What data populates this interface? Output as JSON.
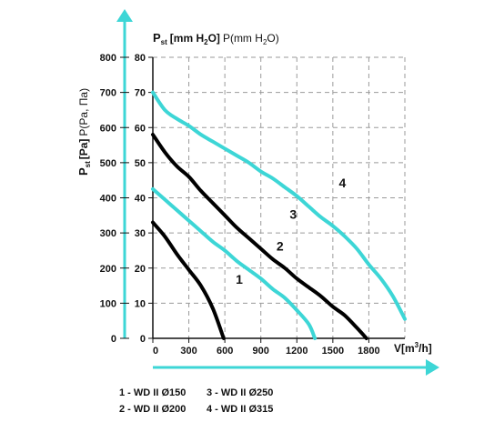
{
  "chart_data": {
    "type": "line",
    "title_main": "P",
    "title_sub": "st",
    "title_units": "[mm H",
    "title_units_sub": "2",
    "title_units_end": "O]",
    "title_alt": "P(mm H",
    "title_alt_sub": "2",
    "title_alt_end": "O)",
    "ylabel_main": "P",
    "ylabel_sub": "st",
    "ylabel_rest": "[Pa]",
    "ylabel_alt": "P(Pa, Па)",
    "xlabel_main": "V[m",
    "xlabel_sup": "3",
    "xlabel_end": "/h]",
    "x_ticks": [
      "0",
      "300",
      "600",
      "900",
      "1200",
      "1500",
      "1800"
    ],
    "y_pa_ticks": [
      "0",
      "100",
      "200",
      "300",
      "400",
      "500",
      "600",
      "700",
      "800"
    ],
    "y_mm_ticks": [
      "0",
      "10",
      "20",
      "30",
      "40",
      "50",
      "60",
      "70",
      "80"
    ],
    "xlim": [
      0,
      2100
    ],
    "ylim": [
      0,
      800
    ],
    "grid": true,
    "series": [
      {
        "name": "1",
        "color": "#000000",
        "x": [
          0,
          100,
          200,
          300,
          400,
          500,
          590
        ],
        "y": [
          330,
          290,
          240,
          195,
          150,
          85,
          0
        ]
      },
      {
        "name": "2",
        "color": "#3dd6d6",
        "x": [
          0,
          100,
          200,
          300,
          400,
          500,
          600,
          700,
          800,
          900,
          1000,
          1100,
          1200,
          1300,
          1350
        ],
        "y": [
          425,
          395,
          365,
          335,
          305,
          275,
          250,
          220,
          195,
          170,
          140,
          115,
          80,
          40,
          0
        ]
      },
      {
        "name": "3",
        "color": "#000000",
        "x": [
          0,
          100,
          200,
          300,
          400,
          500,
          600,
          700,
          800,
          900,
          1000,
          1100,
          1200,
          1300,
          1400,
          1500,
          1600,
          1700,
          1780
        ],
        "y": [
          580,
          530,
          490,
          460,
          420,
          385,
          350,
          315,
          285,
          255,
          225,
          200,
          170,
          145,
          120,
          90,
          65,
          30,
          0
        ]
      },
      {
        "name": "4",
        "color": "#3dd6d6",
        "x": [
          0,
          100,
          200,
          300,
          400,
          500,
          600,
          700,
          800,
          900,
          1000,
          1100,
          1200,
          1300,
          1400,
          1500,
          1600,
          1700,
          1800,
          1900,
          2000,
          2100
        ],
        "y": [
          700,
          650,
          625,
          605,
          580,
          560,
          540,
          520,
          500,
          475,
          455,
          430,
          405,
          375,
          345,
          320,
          290,
          255,
          210,
          170,
          120,
          55
        ]
      }
    ],
    "legend": [
      {
        "text": "1 - WD II Ø150"
      },
      {
        "text": "2 - WD II Ø200"
      },
      {
        "text": "3 - WD II Ø250"
      },
      {
        "text": "4 - WD II Ø315"
      }
    ]
  }
}
